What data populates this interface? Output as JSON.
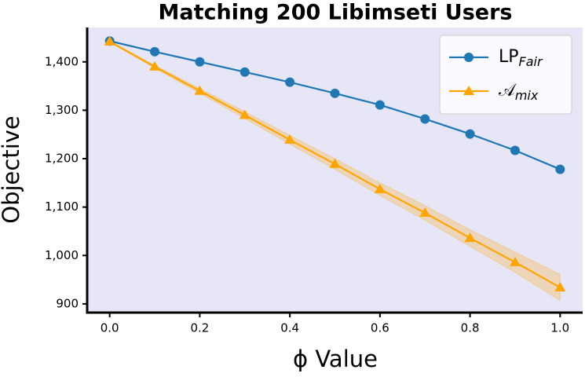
{
  "chart_data": {
    "type": "line",
    "title": "Matching 200 Libimseti Users",
    "xlabel": "ϕ Value",
    "ylabel": "Objective",
    "x": [
      0,
      0.1,
      0.2,
      0.3,
      0.4,
      0.5,
      0.6,
      0.7,
      0.8,
      0.9,
      1.0
    ],
    "series": [
      {
        "name": "LP",
        "subscript": "Fair",
        "color": "#1f77b4",
        "marker": "circle",
        "values": [
          1443,
          1421,
          1400,
          1379,
          1358,
          1335,
          1311,
          1282,
          1251,
          1217,
          1178
        ]
      },
      {
        "name": "𝒜",
        "subscript": "mix",
        "color": "#ffa500",
        "marker": "triangle",
        "values": [
          1442,
          1390,
          1340,
          1290,
          1239,
          1189,
          1137,
          1088,
          1036,
          986,
          934
        ],
        "lower": [
          1441,
          1387,
          1335,
          1283,
          1230,
          1178,
          1124,
          1073,
          1019,
          965,
          907
        ],
        "upper": [
          1443,
          1393,
          1345,
          1297,
          1248,
          1200,
          1150,
          1103,
          1053,
          1007,
          961
        ]
      }
    ],
    "xlim": [
      -0.05,
      1.05
    ],
    "ylim": [
      882,
      1471
    ],
    "xticks": [
      {
        "value": 0,
        "label": "0.0"
      },
      0.2,
      0.4,
      0.6,
      0.8,
      {
        "value": 1,
        "label": "1.0"
      }
    ],
    "yticks": [
      {
        "value": 900,
        "label": "900"
      },
      {
        "value": 1000,
        "label": "1,000"
      },
      {
        "value": 1100,
        "label": "1,100"
      },
      {
        "value": 1200,
        "label": "1,200"
      },
      {
        "value": 1300,
        "label": "1,300"
      },
      {
        "value": 1400,
        "label": "1,400"
      }
    ],
    "background": "#e6e6f7",
    "legend": "upper right",
    "grid": false
  }
}
